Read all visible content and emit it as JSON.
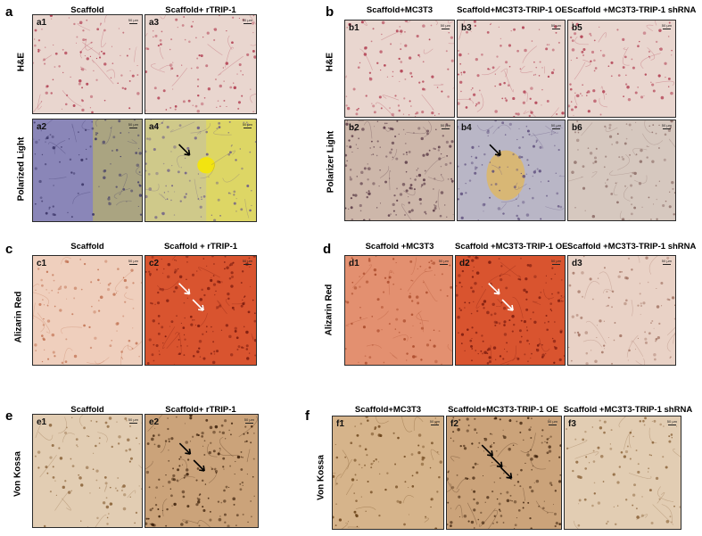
{
  "figure": {
    "panels": [
      {
        "id": "a",
        "label": "a",
        "columns": [
          "Scaffold",
          "Scaffold+ rTRIP-1"
        ],
        "rows": [
          "H&E",
          "Polarized Light"
        ]
      },
      {
        "id": "b",
        "label": "b",
        "columns": [
          "Scaffold+MC3T3",
          "Scaffold+MC3T3-TRIP-1 OE",
          "Scaffold +MC3T3-TRIP-1 shRNA"
        ],
        "rows": [
          "H&E",
          "Polarizer Light"
        ]
      },
      {
        "id": "c",
        "label": "c",
        "columns": [
          "Scaffold",
          "Scaffold + rTRIP-1"
        ],
        "rows": [
          "Alizarin Red"
        ]
      },
      {
        "id": "d",
        "label": "d",
        "columns": [
          "Scaffold +MC3T3",
          "Scaffold +MC3T3-TRIP-1 OE",
          "Scaffold +MC3T3-TRIP-1 shRNA"
        ],
        "rows": [
          "Alizarin Red"
        ]
      },
      {
        "id": "e",
        "label": "e",
        "columns": [
          "Scaffold",
          "Scaffold+ rTRIP-1"
        ],
        "rows": [
          "Von Kossa"
        ]
      },
      {
        "id": "f",
        "label": "f",
        "columns": [
          "Scaffold+MC3T3",
          "Scaffold+MC3T3-TRIP-1 OE",
          "Scaffold +MC3T3-TRIP-1 shRNA"
        ],
        "rows": [
          "Von Kossa"
        ]
      }
    ],
    "images": {
      "a1": {
        "tag": "a1",
        "scale": "50 µm",
        "stain": "he"
      },
      "a3": {
        "tag": "a3",
        "scale": "50 µm",
        "stain": "he"
      },
      "a2": {
        "tag": "a2",
        "scale": "50 µm",
        "stain": "pol-purple"
      },
      "a4": {
        "tag": "a4",
        "scale": "50 µm",
        "stain": "pol-yellow",
        "arrows": 1
      },
      "b1": {
        "tag": "b1",
        "scale": "50 µm",
        "stain": "he"
      },
      "b3": {
        "tag": "b3",
        "scale": "50 µm",
        "stain": "he"
      },
      "b5": {
        "tag": "b5",
        "scale": "50 µm",
        "stain": "he"
      },
      "b2": {
        "tag": "b2",
        "scale": "50 µm",
        "stain": "pol-dark"
      },
      "b4": {
        "tag": "b4",
        "scale": "50 µm",
        "stain": "pol-blue",
        "arrows": 1
      },
      "b6": {
        "tag": "b6",
        "scale": "50 µm",
        "stain": "pol-pale"
      },
      "c1": {
        "tag": "c1",
        "scale": "50 µm",
        "stain": "ar-light"
      },
      "c2": {
        "tag": "c2",
        "scale": "50 µm",
        "stain": "ar-strong",
        "arrows": 2
      },
      "d1": {
        "tag": "d1",
        "scale": "50 µm",
        "stain": "ar-mid"
      },
      "d2": {
        "tag": "d2",
        "scale": "50 µm",
        "stain": "ar-strong",
        "arrows": 2
      },
      "d3": {
        "tag": "d3",
        "scale": "50 µm",
        "stain": "ar-pale"
      },
      "e1": {
        "tag": "e1",
        "scale": "50 µm",
        "stain": "vk-light"
      },
      "e2": {
        "tag": "e2",
        "scale": "50 µm",
        "stain": "vk-dark",
        "arrows": 2
      },
      "f1": {
        "tag": "f1",
        "scale": "50 µm",
        "stain": "vk-mid"
      },
      "f2": {
        "tag": "f2",
        "scale": "50 µm",
        "stain": "vk-dark",
        "arrows": 3
      },
      "f3": {
        "tag": "f3",
        "scale": "50 µm",
        "stain": "vk-light"
      }
    },
    "colors": {
      "he": "#e9d6cf",
      "pol-purple": "#8a86b8",
      "pol-yellow": "#cfc98a",
      "pol-dark": "#cdb7aa",
      "pol-blue": "#b9b6c6",
      "pol-pale": "#d6c8bf",
      "ar-light": "#efcfbd",
      "ar-strong": "#d9542f",
      "ar-mid": "#e39070",
      "ar-pale": "#e9d2c6",
      "vk-light": "#e2cdb3",
      "vk-mid": "#d6b48b",
      "vk-dark": "#cba37a"
    }
  }
}
